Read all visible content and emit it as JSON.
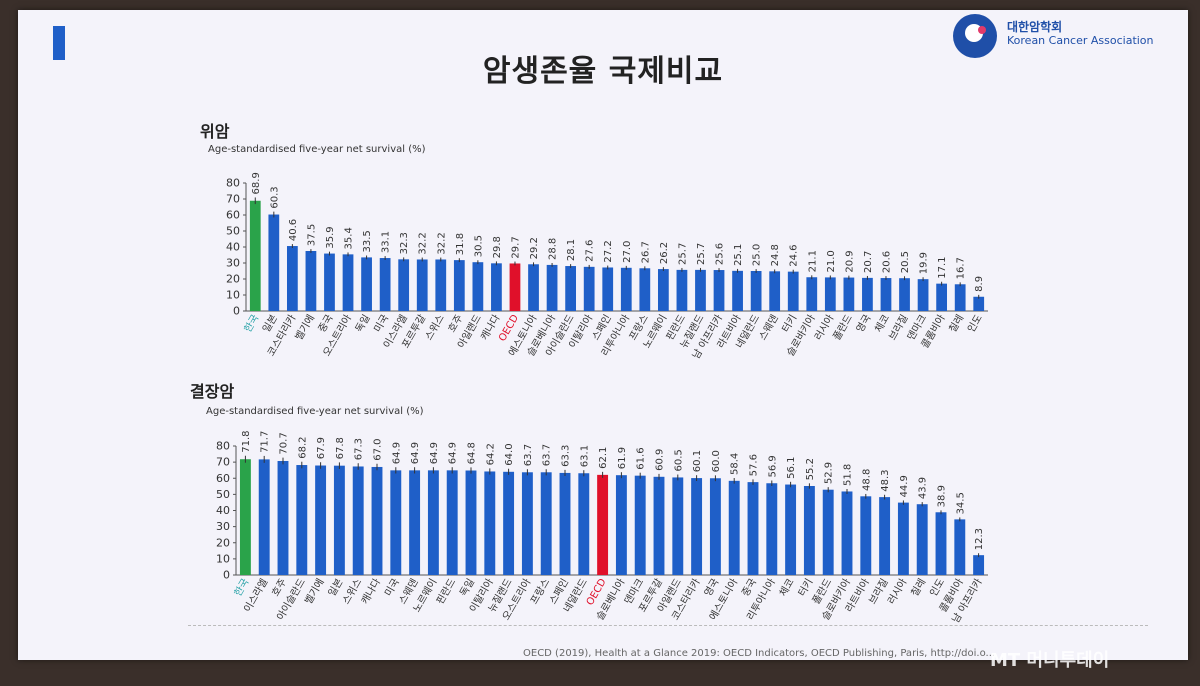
{
  "slide": {
    "title": "암생존율 국제비교",
    "source": "OECD (2019), Health at a Glance 2019: OECD Indicators, OECD Publishing, Paris, http://doi.o...",
    "watermark": "MT 머니투데이",
    "logo": {
      "name_ko": "대한암학회",
      "name_en": "Korean Cancer Association"
    }
  },
  "colors": {
    "bar": "#1f5fc8",
    "korea": "#2aa34a",
    "oecd": "#e0102a",
    "korea_label": "#2aa3a8",
    "oecd_label": "#e0102a"
  },
  "chart_data": [
    {
      "type": "bar",
      "title": "위암",
      "ylabel": "Age-standardised five-year net survival (%)",
      "ylim": [
        0,
        80
      ],
      "yticks": [
        0,
        10,
        20,
        30,
        40,
        50,
        60,
        70,
        80
      ],
      "categories": [
        "한국",
        "일본",
        "코스타리카",
        "벨기에",
        "중국",
        "오스트리아",
        "독일",
        "미국",
        "이스라엘",
        "포르투갈",
        "스위스",
        "호주",
        "아일랜드",
        "캐나다",
        "OECD",
        "에스토니아",
        "슬로베니아",
        "아이슬란드",
        "이탈리아",
        "스페인",
        "리투아니아",
        "프랑스",
        "노르웨이",
        "핀란드",
        "뉴질랜드",
        "남 아프리카",
        "라트비아",
        "네덜란드",
        "스웨덴",
        "터키",
        "슬로바키아",
        "러시아",
        "폴란드",
        "영국",
        "체코",
        "브라질",
        "덴마크",
        "콜롬비아",
        "칠레",
        "인도"
      ],
      "values": [
        68.9,
        60.3,
        40.6,
        37.5,
        35.9,
        35.4,
        33.5,
        33.1,
        32.3,
        32.2,
        32.2,
        31.8,
        30.5,
        29.8,
        29.7,
        29.2,
        28.8,
        28.1,
        27.6,
        27.2,
        27.0,
        26.7,
        26.2,
        25.7,
        25.7,
        25.6,
        25.1,
        25.0,
        24.8,
        24.6,
        21.1,
        21.0,
        20.9,
        20.7,
        20.6,
        20.5,
        19.9,
        17.1,
        16.7,
        8.9
      ],
      "value_labels": [
        "68.9",
        "60.3",
        "40.6",
        "37.5",
        "35.9",
        "35.4",
        "33.5",
        "33.1",
        "32.3",
        "32.2",
        "32.2",
        "31.8",
        "30.5",
        "29.8",
        "29.7",
        "29.2",
        "28.8",
        "28.1",
        "27.6",
        "27.2",
        "27.0",
        "26.7",
        "26.2",
        "25.7",
        "25.7",
        "25.6",
        "25.1",
        "25.0",
        "24.8",
        "24.6",
        "21.1",
        "21.0",
        "20.9",
        "20.7",
        "20.6",
        "20.5",
        "19.9",
        "17.1",
        "16.7",
        "8.9"
      ],
      "highlight": {
        "korea": 0,
        "oecd": 14
      }
    },
    {
      "type": "bar",
      "title": "결장암",
      "ylabel": "Age-standardised five-year net survival (%)",
      "ylim": [
        0,
        80
      ],
      "yticks": [
        0,
        10,
        20,
        30,
        40,
        50,
        60,
        70,
        80
      ],
      "categories": [
        "한국",
        "이스라엘",
        "호주",
        "아이슬란드",
        "벨기에",
        "일본",
        "스위스",
        "캐나다",
        "미국",
        "스웨덴",
        "노르웨이",
        "핀란드",
        "독일",
        "이탈리아",
        "뉴질랜드",
        "오스트리아",
        "프랑스",
        "스페인",
        "네덜란드",
        "OECD",
        "슬로베니아",
        "덴마크",
        "포르투갈",
        "아일랜드",
        "코스타리카",
        "영국",
        "에스토니아",
        "중국",
        "리투아니아",
        "체코",
        "터키",
        "폴란드",
        "슬로바키아",
        "라트비아",
        "브라질",
        "러시아",
        "칠레",
        "인도",
        "콜롬비아",
        "남 아프리카"
      ],
      "values": [
        71.8,
        71.7,
        70.7,
        68.2,
        67.9,
        67.8,
        67.3,
        67.0,
        64.9,
        64.9,
        64.9,
        64.9,
        64.8,
        64.2,
        64.0,
        63.7,
        63.7,
        63.3,
        63.1,
        62.1,
        61.9,
        61.6,
        60.9,
        60.5,
        60.1,
        60.0,
        58.4,
        57.6,
        56.9,
        56.1,
        55.2,
        52.9,
        51.8,
        48.8,
        48.3,
        44.9,
        43.9,
        38.9,
        34.5,
        12.3
      ],
      "value_labels": [
        "71.8",
        "71.7",
        "70.7",
        "68.2",
        "67.9",
        "67.8",
        "67.3",
        "67.0",
        "64.9",
        "64.9",
        "64.9",
        "64.9",
        "64.8",
        "64.2",
        "64.0",
        "63.7",
        "63.7",
        "63.3",
        "63.1",
        "62.1",
        "61.9",
        "61.6",
        "60.9",
        "60.5",
        "60.1",
        "60.0",
        "58.4",
        "57.6",
        "56.9",
        "56.1",
        "55.2",
        "52.9",
        "51.8",
        "48.8",
        "48.3",
        "44.9",
        "43.9",
        "38.9",
        "34.5",
        "12.3"
      ],
      "highlight": {
        "korea": 0,
        "oecd": 19
      }
    }
  ]
}
